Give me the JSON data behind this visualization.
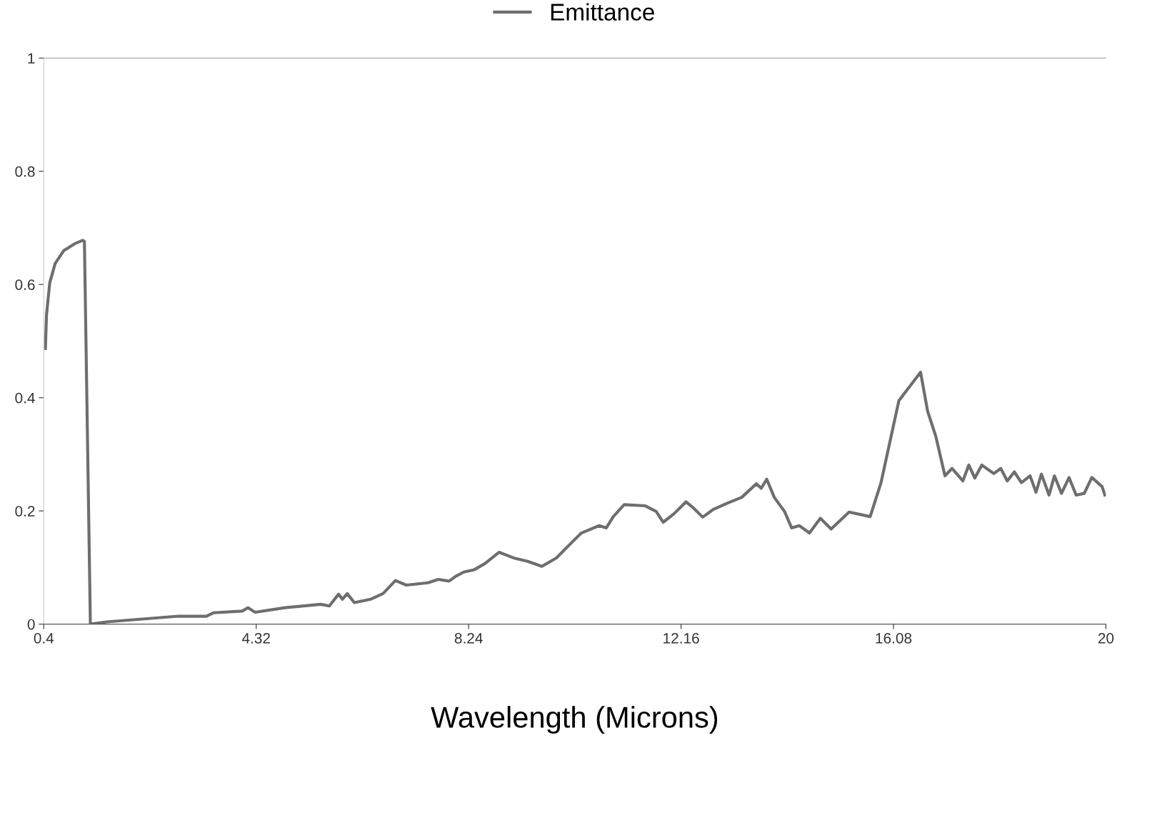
{
  "chart_data": {
    "type": "line",
    "xlabel": "Wavelength (Microns)",
    "legend": "top",
    "grid": false,
    "marker": "none",
    "line_style": "solid",
    "xlim": [
      0.4,
      20
    ],
    "xticks": [
      0.4,
      4.32,
      8.24,
      12.16,
      16.08,
      20
    ],
    "ylim": [
      0,
      1
    ],
    "yticks": [
      0,
      0.2,
      0.4,
      0.6,
      0.8,
      1
    ],
    "series": [
      {
        "name": "Emittance",
        "color": "#6e6e6e",
        "x": [
          0.43,
          0.45,
          0.51,
          0.61,
          0.77,
          0.97,
          1.12,
          1.15,
          1.26,
          1.56,
          2.22,
          2.88,
          3.4,
          3.53,
          4.06,
          4.17,
          4.3,
          4.85,
          5.51,
          5.67,
          5.84,
          5.91,
          6.0,
          6.13,
          6.43,
          6.66,
          6.89,
          7.09,
          7.49,
          7.68,
          7.88,
          8.01,
          8.15,
          8.34,
          8.54,
          8.8,
          9.07,
          9.33,
          9.59,
          9.86,
          10.12,
          10.32,
          10.65,
          10.78,
          10.91,
          11.11,
          11.5,
          11.7,
          11.83,
          12.03,
          12.25,
          12.38,
          12.56,
          12.76,
          13.02,
          13.28,
          13.55,
          13.64,
          13.74,
          13.88,
          13.97,
          14.07,
          14.2,
          14.34,
          14.53,
          14.73,
          14.93,
          15.26,
          15.65,
          15.85,
          16.18,
          16.58,
          16.71,
          16.86,
          17.03,
          17.16,
          17.36,
          17.47,
          17.58,
          17.71,
          17.93,
          18.06,
          18.18,
          18.31,
          18.44,
          18.6,
          18.71,
          18.81,
          18.95,
          19.05,
          19.18,
          19.32,
          19.45,
          19.6,
          19.74,
          19.93,
          19.98
        ],
        "values": [
          0.487,
          0.546,
          0.603,
          0.637,
          0.66,
          0.672,
          0.678,
          0.676,
          0.0,
          0.004,
          0.009,
          0.014,
          0.014,
          0.02,
          0.023,
          0.029,
          0.021,
          0.029,
          0.035,
          0.032,
          0.053,
          0.044,
          0.054,
          0.038,
          0.044,
          0.054,
          0.077,
          0.069,
          0.073,
          0.079,
          0.076,
          0.085,
          0.092,
          0.096,
          0.107,
          0.127,
          0.117,
          0.111,
          0.102,
          0.117,
          0.142,
          0.161,
          0.174,
          0.17,
          0.19,
          0.211,
          0.209,
          0.199,
          0.18,
          0.195,
          0.216,
          0.206,
          0.189,
          0.203,
          0.214,
          0.224,
          0.248,
          0.24,
          0.256,
          0.224,
          0.212,
          0.199,
          0.17,
          0.174,
          0.161,
          0.187,
          0.168,
          0.198,
          0.19,
          0.25,
          0.395,
          0.445,
          0.376,
          0.332,
          0.262,
          0.275,
          0.253,
          0.281,
          0.258,
          0.281,
          0.266,
          0.275,
          0.253,
          0.269,
          0.25,
          0.262,
          0.233,
          0.265,
          0.228,
          0.262,
          0.231,
          0.259,
          0.228,
          0.231,
          0.259,
          0.243,
          0.228
        ]
      }
    ]
  }
}
